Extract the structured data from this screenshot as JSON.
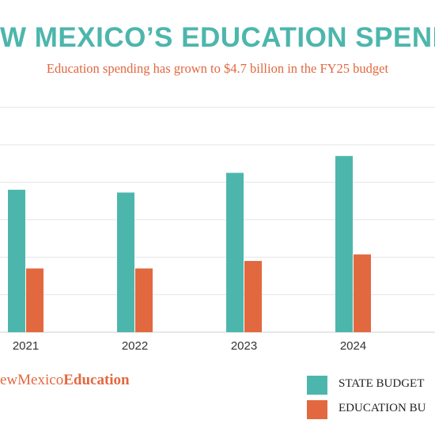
{
  "title": "W MEXICO’S EDUCATION SPENDIN",
  "subtitle": "Education spending has grown to $4.7 billion in the FY25 budget",
  "logo": {
    "prefix": "ewMexico",
    "bold": "Education"
  },
  "colors": {
    "state": "#4db6ac",
    "education": "#e2683f",
    "grid": "#e6e6e6"
  },
  "chart_data": {
    "type": "bar",
    "categories": [
      "2021",
      "2022",
      "2023",
      "2024"
    ],
    "series": [
      {
        "name": "STATE BUDGET",
        "values": [
          7.6,
          7.45,
          8.5,
          9.4
        ]
      },
      {
        "name": "EDUCATION BU",
        "values": [
          3.4,
          3.4,
          3.8,
          4.15
        ]
      }
    ],
    "ylim": [
      0,
      12
    ],
    "grid": true,
    "legend": "bottom-right"
  }
}
